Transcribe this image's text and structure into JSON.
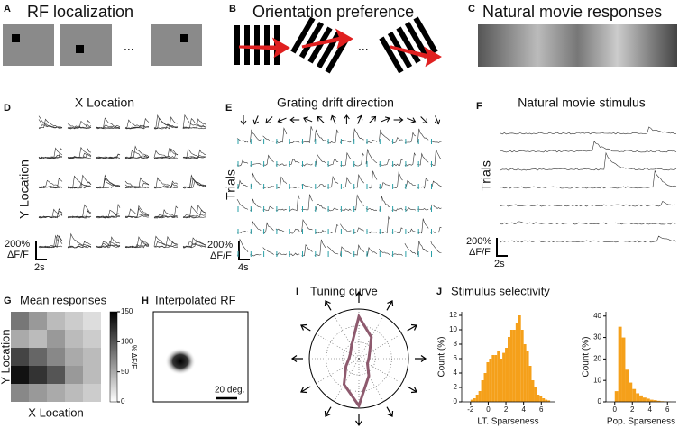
{
  "panels": {
    "A": {
      "letter": "A",
      "title": "RF localization",
      "ellipsis": "..."
    },
    "B": {
      "letter": "B",
      "title": "Orientation preference",
      "ellipsis": "..."
    },
    "C": {
      "letter": "C",
      "title": "Natural movie responses"
    },
    "D": {
      "letter": "D",
      "title": "X Location",
      "ylabel": "Y Location",
      "scale_y": "200%",
      "scale_unit": "ΔF/F",
      "scale_x": "2s"
    },
    "E": {
      "letter": "E",
      "title": "Grating drift direction",
      "ylabel": "Trials",
      "scale_y": "200%",
      "scale_unit": "ΔF/F",
      "scale_x": "4s"
    },
    "F": {
      "letter": "F",
      "title": "Natural movie stimulus",
      "ylabel": "Trials",
      "scale_y": "200%",
      "scale_unit": "ΔF/F",
      "scale_x": "2s"
    },
    "G": {
      "letter": "G",
      "title": "Mean responses",
      "xlabel": "X Location",
      "ylabel": "Y Location",
      "colorbar_label": "% ΔF/F",
      "chart_data": {
        "type": "heatmap",
        "values": [
          [
            80,
            60,
            40,
            30,
            20
          ],
          [
            50,
            40,
            60,
            40,
            30
          ],
          [
            110,
            90,
            70,
            50,
            40
          ],
          [
            140,
            120,
            100,
            60,
            40
          ],
          [
            70,
            60,
            50,
            40,
            30
          ]
        ],
        "clim": [
          0,
          150
        ],
        "cticks": [
          0,
          50,
          100,
          150
        ]
      }
    },
    "H": {
      "letter": "H",
      "title": "Interpolated RF",
      "scale": "20 deg."
    },
    "I": {
      "letter": "I",
      "title": "Tuning curve",
      "chart_data": {
        "type": "polar",
        "directions": [
          0,
          30,
          60,
          90,
          120,
          150,
          180,
          210,
          240,
          270,
          300,
          330
        ],
        "values": [
          0.2,
          0.25,
          0.5,
          0.85,
          0.3,
          0.2,
          0.2,
          0.3,
          0.6,
          0.95,
          0.4,
          0.2
        ],
        "rlim": [
          0,
          1
        ],
        "color": "#8e5a6e"
      }
    },
    "J": {
      "letter": "J",
      "title": "Stimulus selectivity",
      "charts": [
        {
          "type": "histogram",
          "xlabel": "LT. Sparseness",
          "ylabel": "Count (%)",
          "color": "#f5a01a",
          "bins": [
            -2,
            -1.7,
            -1.4,
            -1.1,
            -0.8,
            -0.5,
            -0.2,
            0.1,
            0.4,
            0.7,
            1.0,
            1.3,
            1.6,
            1.9,
            2.2,
            2.5,
            2.8,
            3.1,
            3.4,
            3.7,
            4.0,
            4.3,
            4.6,
            4.9,
            5.2,
            5.5,
            5.8,
            6.1,
            6.4,
            6.7,
            7.0
          ],
          "counts": [
            0.3,
            0.5,
            1,
            1.5,
            3,
            4,
            5.5,
            6,
            6.5,
            6.5,
            7,
            6,
            6.8,
            7.5,
            9,
            10,
            10,
            11,
            12,
            10,
            8,
            7,
            5,
            3,
            2,
            1,
            0.8,
            0.5,
            0.3,
            0.2
          ],
          "xlim": [
            -3,
            7.5
          ],
          "xticks": [
            -2,
            0,
            2,
            4,
            6
          ],
          "ylim": [
            0,
            12.5
          ],
          "yticks": [
            0,
            2,
            4,
            6,
            8,
            10,
            12
          ]
        },
        {
          "type": "histogram",
          "xlabel": "Pop. Sparseness",
          "ylabel": "Count (%)",
          "color": "#f5a01a",
          "bins": [
            0,
            0.4,
            0.8,
            1.2,
            1.6,
            2.0,
            2.4,
            2.8,
            3.2,
            3.6,
            4.0,
            4.4,
            4.8,
            5.2,
            5.6,
            6.0,
            6.4
          ],
          "counts": [
            5,
            35,
            30,
            15,
            9,
            6,
            4,
            3,
            2,
            1.5,
            1,
            0.8,
            0.5,
            0.3,
            0.2,
            0.1
          ],
          "xlim": [
            -1,
            7
          ],
          "xticks": [
            0,
            2,
            4,
            6
          ],
          "ylim": [
            0,
            42
          ],
          "yticks": [
            0,
            10,
            20,
            30,
            40
          ]
        }
      ]
    }
  }
}
